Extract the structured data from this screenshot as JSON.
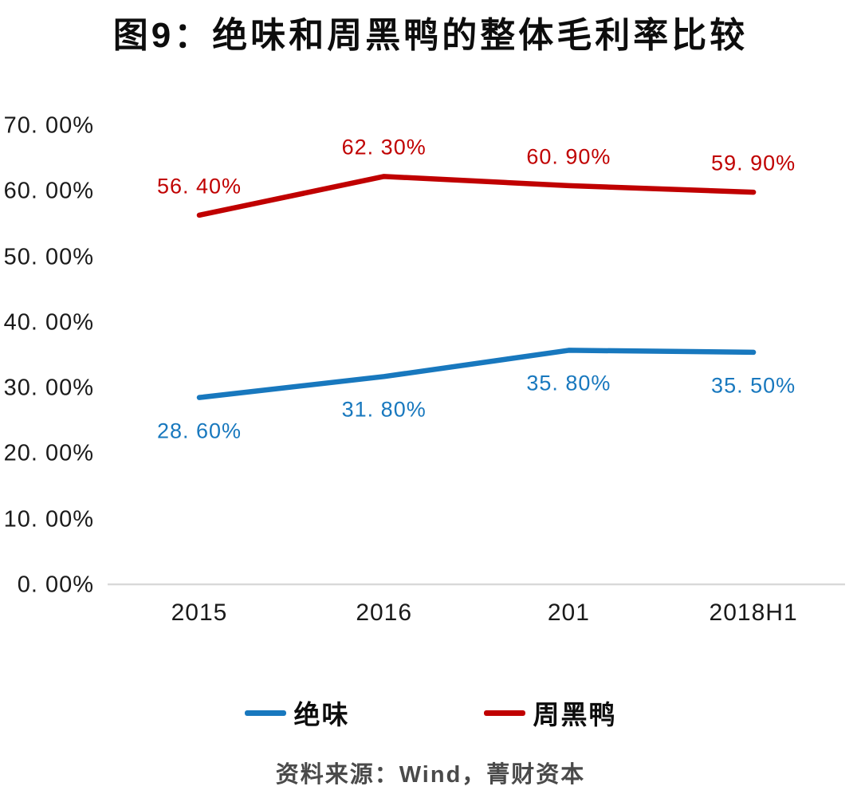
{
  "title": "图9：绝味和周黑鸭的整体毛利率比较",
  "source": "资料来源：Wind，菁财资本",
  "colors": {
    "juewei_blue": "#1878BE",
    "zhouheiya_red": "#C00000",
    "axis_line": "#D9D9D9",
    "tick_text": "#1a1a1a",
    "source_text": "#4a4a4a"
  },
  "legend": [
    {
      "name": "绝味",
      "color": "#1878BE"
    },
    {
      "name": "周黑鸭",
      "color": "#C00000"
    }
  ],
  "chart_data": {
    "type": "line",
    "title": "图9：绝味和周黑鸭的整体毛利率比较",
    "categories": [
      "2015",
      "2016",
      "201",
      "2018H1"
    ],
    "series": [
      {
        "name": "绝味",
        "color": "#1878BE",
        "values": [
          28.6,
          31.8,
          35.8,
          35.5
        ],
        "point_labels": [
          "28. 60%",
          "31. 80%",
          "35. 80%",
          "35. 50%"
        ],
        "label_position": "below"
      },
      {
        "name": "周黑鸭",
        "color": "#C00000",
        "values": [
          56.4,
          62.3,
          60.9,
          59.9
        ],
        "point_labels": [
          "56. 40%",
          "62. 30%",
          "60. 90%",
          "59. 90%"
        ],
        "label_position": "above"
      }
    ],
    "ylim": [
      0,
      70
    ],
    "ytick_step": 10,
    "ytick_labels": [
      "0. 00%",
      "10. 00%",
      "20. 00%",
      "30. 00%",
      "40. 00%",
      "50. 00%",
      "60. 00%",
      "70. 00%"
    ],
    "grid": false,
    "legend_position": "bottom"
  }
}
